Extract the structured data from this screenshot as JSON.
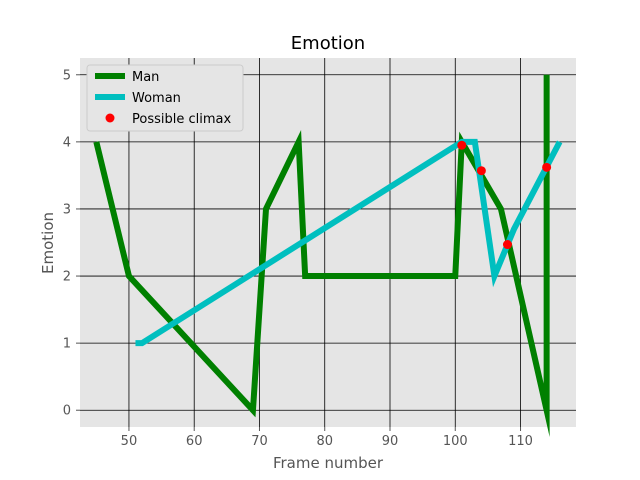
{
  "chart_data": {
    "type": "line",
    "title": "Emotion",
    "xlabel": "Frame number",
    "ylabel": "Emotion",
    "xlim": [
      42.5,
      118.5
    ],
    "ylim": [
      -0.25,
      5.25
    ],
    "xticks": [
      50,
      60,
      70,
      80,
      90,
      100,
      110
    ],
    "yticks": [
      0,
      1,
      2,
      3,
      4,
      5
    ],
    "grid": true,
    "background": "#e5e5e5",
    "grid_color": "#000000",
    "legend_position": "top-left",
    "series": [
      {
        "name": "Man",
        "kind": "line",
        "color": "#008000",
        "x": [
          45,
          50,
          69,
          71,
          76,
          77,
          100,
          101,
          104,
          107,
          114,
          114
        ],
        "y": [
          4,
          2,
          0,
          3,
          4,
          2,
          2,
          4,
          3.5,
          3,
          0,
          5
        ]
      },
      {
        "name": "Woman",
        "kind": "line",
        "color": "#00bfbf",
        "x": [
          51,
          52,
          101,
          103,
          106,
          109,
          116
        ],
        "y": [
          1,
          1,
          4,
          4,
          2,
          2.7,
          4
        ]
      },
      {
        "name": "Possible climax",
        "kind": "scatter",
        "color": "#ff0000",
        "x": [
          101,
          104,
          108,
          114
        ],
        "y": [
          3.95,
          3.57,
          2.47,
          3.62
        ]
      }
    ]
  }
}
